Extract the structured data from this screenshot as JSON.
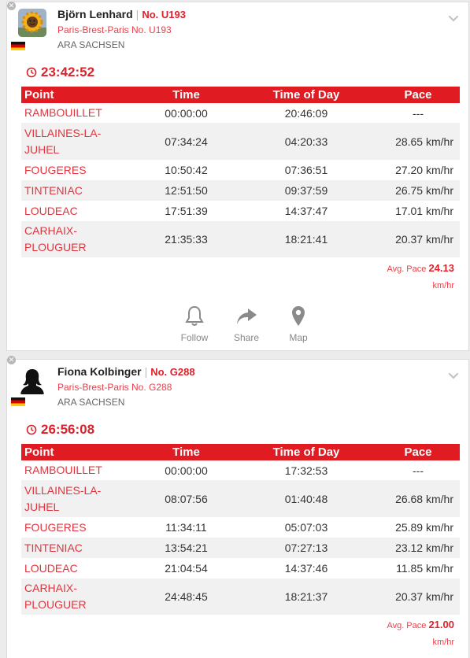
{
  "columns": {
    "point": "Point",
    "time": "Time",
    "time_of_day": "Time of Day",
    "pace": "Pace"
  },
  "avg_pace_label": "Avg. Pace",
  "actions": {
    "follow": "Follow",
    "share": "Share",
    "map": "Map"
  },
  "riders": [
    {
      "name": "Björn Lenhard",
      "bib": "No. U193",
      "event": "Paris-Brest-Paris No. U193",
      "club": "ARA SACHSEN",
      "country_flag": "germany",
      "total_time": "23:42:52",
      "splits": [
        {
          "point": "RAMBOUILLET",
          "time": "00:00:00",
          "time_of_day": "20:46:09",
          "pace": "---"
        },
        {
          "point": "VILLAINES-LA-JUHEL",
          "time": "07:34:24",
          "time_of_day": "04:20:33",
          "pace": "28.65 km/hr"
        },
        {
          "point": "FOUGERES",
          "time": "10:50:42",
          "time_of_day": "07:36:51",
          "pace": "27.20 km/hr"
        },
        {
          "point": "TINTENIAC",
          "time": "12:51:50",
          "time_of_day": "09:37:59",
          "pace": "26.75 km/hr"
        },
        {
          "point": "LOUDEAC",
          "time": "17:51:39",
          "time_of_day": "14:37:47",
          "pace": "17.01 km/hr"
        },
        {
          "point": "CARHAIX-PLOUGUER",
          "time": "21:35:33",
          "time_of_day": "18:21:41",
          "pace": "20.37 km/hr"
        }
      ],
      "avg_pace_value": "24.13",
      "avg_pace_unit": "km/hr"
    },
    {
      "name": "Fiona Kolbinger",
      "bib": "No. G288",
      "event": "Paris-Brest-Paris No. G288",
      "club": "ARA SACHSEN",
      "country_flag": "germany",
      "total_time": "26:56:08",
      "splits": [
        {
          "point": "RAMBOUILLET",
          "time": "00:00:00",
          "time_of_day": "17:32:53",
          "pace": "---"
        },
        {
          "point": "VILLAINES-LA-JUHEL",
          "time": "08:07:56",
          "time_of_day": "01:40:48",
          "pace": "26.68 km/hr"
        },
        {
          "point": "FOUGERES",
          "time": "11:34:11",
          "time_of_day": "05:07:03",
          "pace": "25.89 km/hr"
        },
        {
          "point": "TINTENIAC",
          "time": "13:54:21",
          "time_of_day": "07:27:13",
          "pace": "23.12 km/hr"
        },
        {
          "point": "LOUDEAC",
          "time": "21:04:54",
          "time_of_day": "14:37:46",
          "pace": "11.85 km/hr"
        },
        {
          "point": "CARHAIX-PLOUGUER",
          "time": "24:48:45",
          "time_of_day": "18:21:37",
          "pace": "20.37 km/hr"
        }
      ],
      "avg_pace_value": "21.00",
      "avg_pace_unit": "km/hr"
    }
  ],
  "colors": {
    "accent_red": "#e01b22",
    "link_red": "#e0353f",
    "row_alt": "#f1f1f1"
  }
}
